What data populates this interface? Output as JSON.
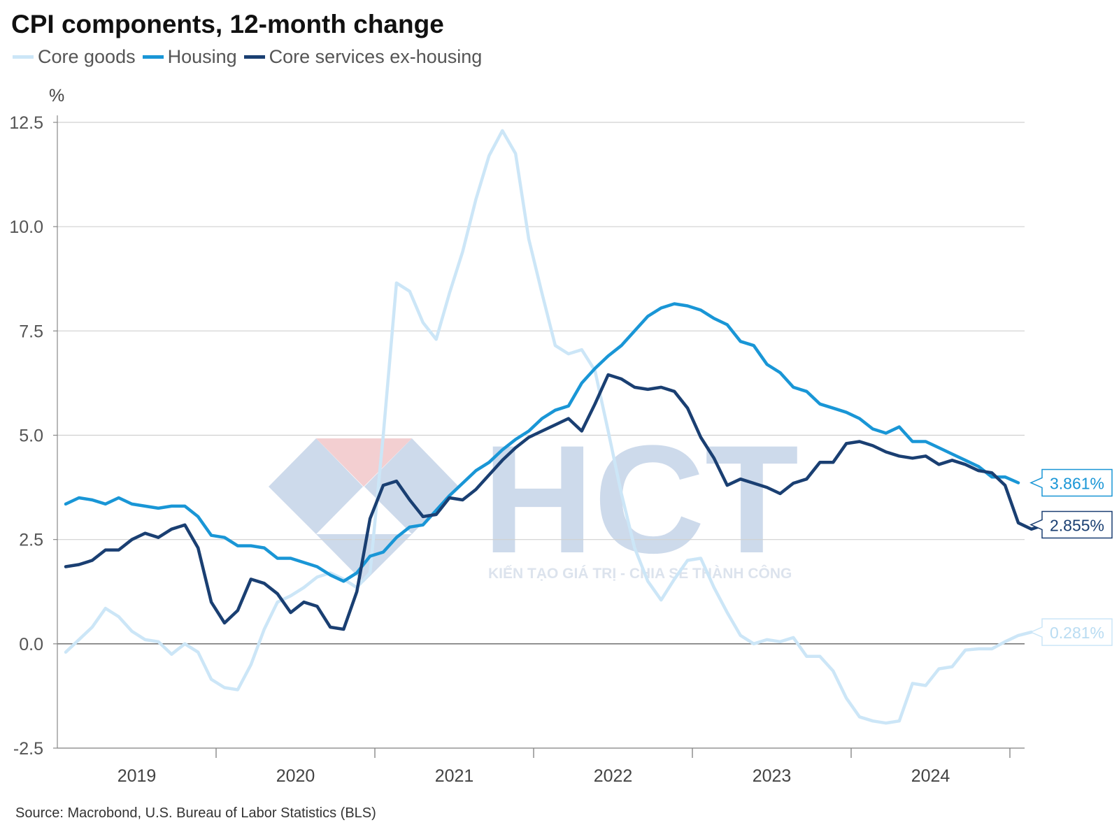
{
  "title": "CPI components, 12-month change",
  "source": "Source: Macrobond, U.S. Bureau of Labor Statistics (BLS)",
  "watermark": {
    "logo_text": "HCT",
    "tagline": "KIẾN TẠO GIÁ TRỊ - CHIA SẺ THÀNH CÔNG"
  },
  "colors": {
    "core_goods": "#cce6f7",
    "housing": "#1996d6",
    "core_services": "#1a3f72",
    "grid": "#d0d0d0",
    "zero_line": "#7a7a7a"
  },
  "chart_data": {
    "type": "line",
    "title": "CPI components, 12-month change",
    "ylabel": "%",
    "xlabel": "",
    "ylim": [
      -2.5,
      12.5
    ],
    "yticks": [
      12.5,
      10.0,
      7.5,
      5.0,
      2.5,
      0.0,
      -2.5
    ],
    "ytick_labels": [
      "12.5",
      "10.0",
      "7.5",
      "5.0",
      "2.5",
      "0.0",
      "-2.5"
    ],
    "xticks": [
      "2019",
      "2020",
      "2021",
      "2022",
      "2023",
      "2024"
    ],
    "x_start": "2019-01",
    "x_end": "2025-01",
    "grid": true,
    "legend_position": "top-left",
    "series": [
      {
        "name": "Core goods",
        "color_key": "core_goods",
        "end_label": "0.281%",
        "values": [
          -0.2,
          0.1,
          0.4,
          0.85,
          0.65,
          0.3,
          0.1,
          0.05,
          -0.25,
          0.0,
          -0.2,
          -0.85,
          -1.05,
          -1.1,
          -0.5,
          0.35,
          1.0,
          1.15,
          1.35,
          1.6,
          1.7,
          1.55,
          1.35,
          1.7,
          5.0,
          8.65,
          8.45,
          7.7,
          7.3,
          8.4,
          9.4,
          10.65,
          11.7,
          12.3,
          11.75,
          9.7,
          8.4,
          7.15,
          6.95,
          7.05,
          6.55,
          5.1,
          3.6,
          2.3,
          1.5,
          1.05,
          1.55,
          2.0,
          2.05,
          1.35,
          0.75,
          0.2,
          0.0,
          0.1,
          0.05,
          0.15,
          -0.3,
          -0.3,
          -0.65,
          -1.3,
          -1.75,
          -1.85,
          -1.9,
          -1.85,
          -0.95,
          -1.0,
          -0.6,
          -0.55,
          -0.15,
          -0.12,
          -0.12,
          0.05,
          0.2,
          0.281
        ]
      },
      {
        "name": "Housing",
        "color_key": "housing",
        "end_label": "3.861%",
        "values": [
          3.35,
          3.5,
          3.45,
          3.35,
          3.5,
          3.35,
          3.3,
          3.25,
          3.3,
          3.3,
          3.05,
          2.6,
          2.55,
          2.35,
          2.35,
          2.3,
          2.05,
          2.05,
          1.95,
          1.85,
          1.65,
          1.5,
          1.7,
          2.1,
          2.2,
          2.55,
          2.8,
          2.85,
          3.2,
          3.55,
          3.85,
          4.15,
          4.35,
          4.65,
          4.9,
          5.1,
          5.4,
          5.6,
          5.7,
          6.25,
          6.6,
          6.9,
          7.15,
          7.5,
          7.85,
          8.05,
          8.15,
          8.1,
          8.0,
          7.8,
          7.65,
          7.25,
          7.15,
          6.7,
          6.5,
          6.15,
          6.05,
          5.75,
          5.65,
          5.55,
          5.4,
          5.15,
          5.05,
          5.2,
          4.85,
          4.85,
          4.7,
          4.55,
          4.4,
          4.25,
          4.0,
          4.0,
          3.861
        ]
      },
      {
        "name": "Core services ex-housing",
        "color_key": "core_services",
        "end_label": "2.855%",
        "values": [
          1.85,
          1.9,
          2.0,
          2.25,
          2.25,
          2.5,
          2.65,
          2.55,
          2.75,
          2.85,
          2.3,
          1.0,
          0.5,
          0.8,
          1.55,
          1.45,
          1.2,
          0.75,
          1.0,
          0.9,
          0.4,
          0.35,
          1.25,
          3.0,
          3.8,
          3.9,
          3.45,
          3.05,
          3.1,
          3.5,
          3.45,
          3.7,
          4.05,
          4.4,
          4.7,
          4.95,
          5.1,
          5.25,
          5.4,
          5.1,
          5.75,
          6.45,
          6.35,
          6.15,
          6.1,
          6.15,
          6.05,
          5.65,
          4.95,
          4.45,
          3.8,
          3.95,
          3.85,
          3.75,
          3.6,
          3.85,
          3.95,
          4.35,
          4.35,
          4.8,
          4.85,
          4.75,
          4.6,
          4.5,
          4.45,
          4.5,
          4.3,
          4.4,
          4.3,
          4.15,
          4.1,
          3.8,
          2.9,
          2.75,
          2.855
        ]
      }
    ]
  }
}
